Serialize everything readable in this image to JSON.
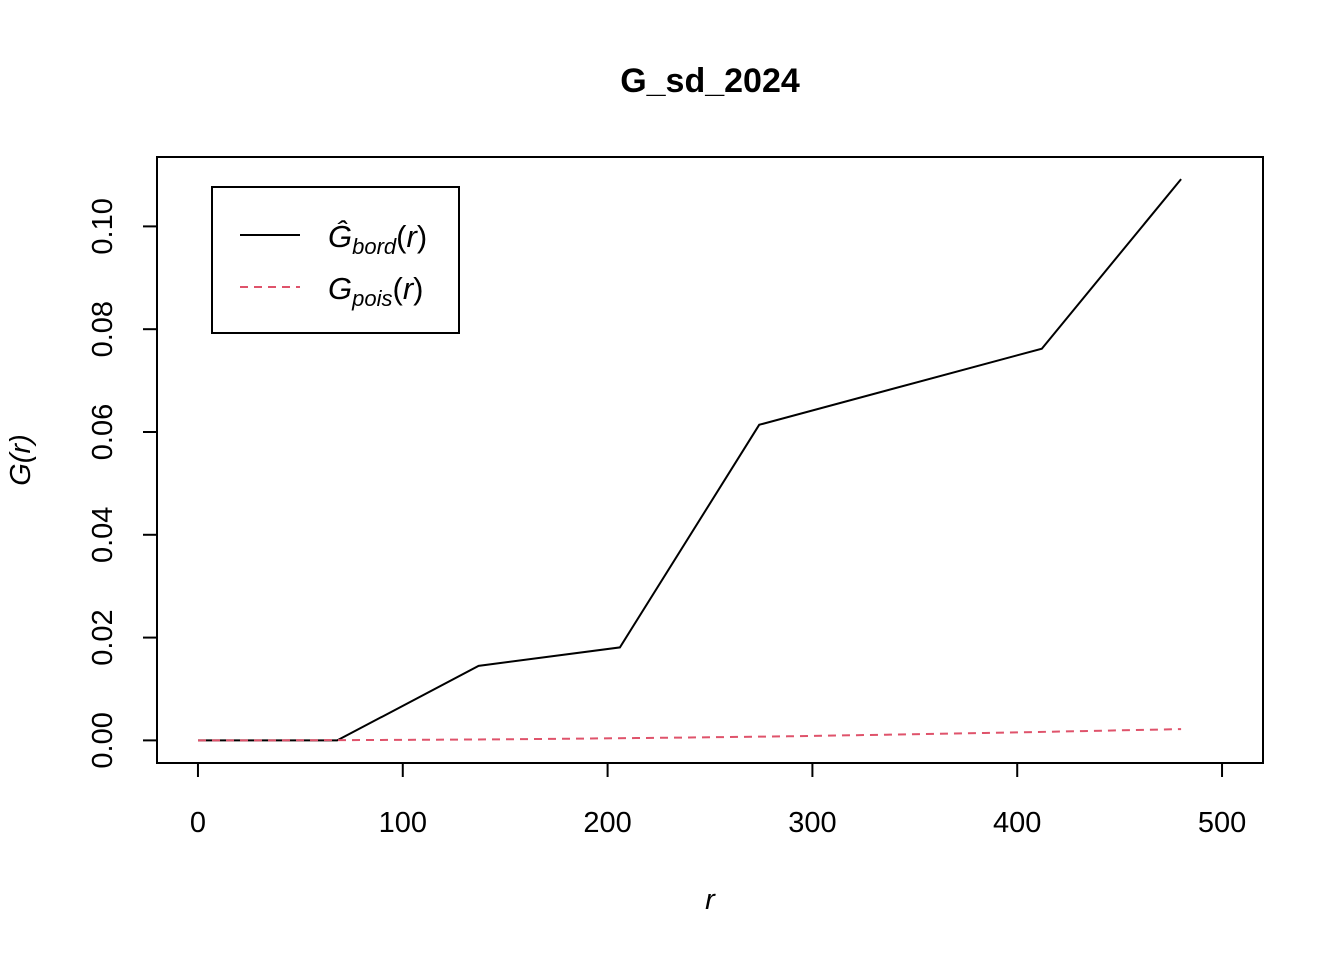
{
  "chart_data": {
    "type": "line",
    "title": "G_sd_2024",
    "xlabel": "r",
    "ylabel": "G(r)",
    "xlim": [
      -20,
      520
    ],
    "ylim": [
      -0.0044,
      0.1135
    ],
    "x_ticks": [
      0,
      100,
      200,
      300,
      400,
      500
    ],
    "x_tick_labels": [
      "0",
      "100",
      "200",
      "300",
      "400",
      "500"
    ],
    "y_ticks": [
      0.0,
      0.02,
      0.04,
      0.06,
      0.08,
      0.1
    ],
    "y_tick_labels": [
      "0.00",
      "0.02",
      "0.04",
      "0.06",
      "0.08",
      "0.10"
    ],
    "grid": false,
    "legend_position": "top-left",
    "series": [
      {
        "name": "Ĝbord(r)",
        "legend_main": "Ĝ",
        "legend_sub": "bord",
        "legend_tail": "(r)",
        "color": "#000000",
        "dash": "solid",
        "x": [
          0,
          68,
          137,
          206,
          274,
          412,
          480
        ],
        "values": [
          0.0,
          0.0,
          0.0145,
          0.0181,
          0.0614,
          0.0762,
          0.1092
        ]
      },
      {
        "name": "Gpois(r)",
        "legend_main": "G",
        "legend_sub": "pois",
        "legend_tail": "(r)",
        "color": "#DF536B",
        "dash": "dashed",
        "x": [
          0,
          48,
          96,
          144,
          192,
          240,
          288,
          336,
          384,
          432,
          480
        ],
        "values": [
          0.0,
          2e-05,
          0.0001,
          0.0002,
          0.00036,
          0.00056,
          0.0008,
          0.0011,
          0.00143,
          0.0018,
          0.0022
        ]
      }
    ]
  }
}
